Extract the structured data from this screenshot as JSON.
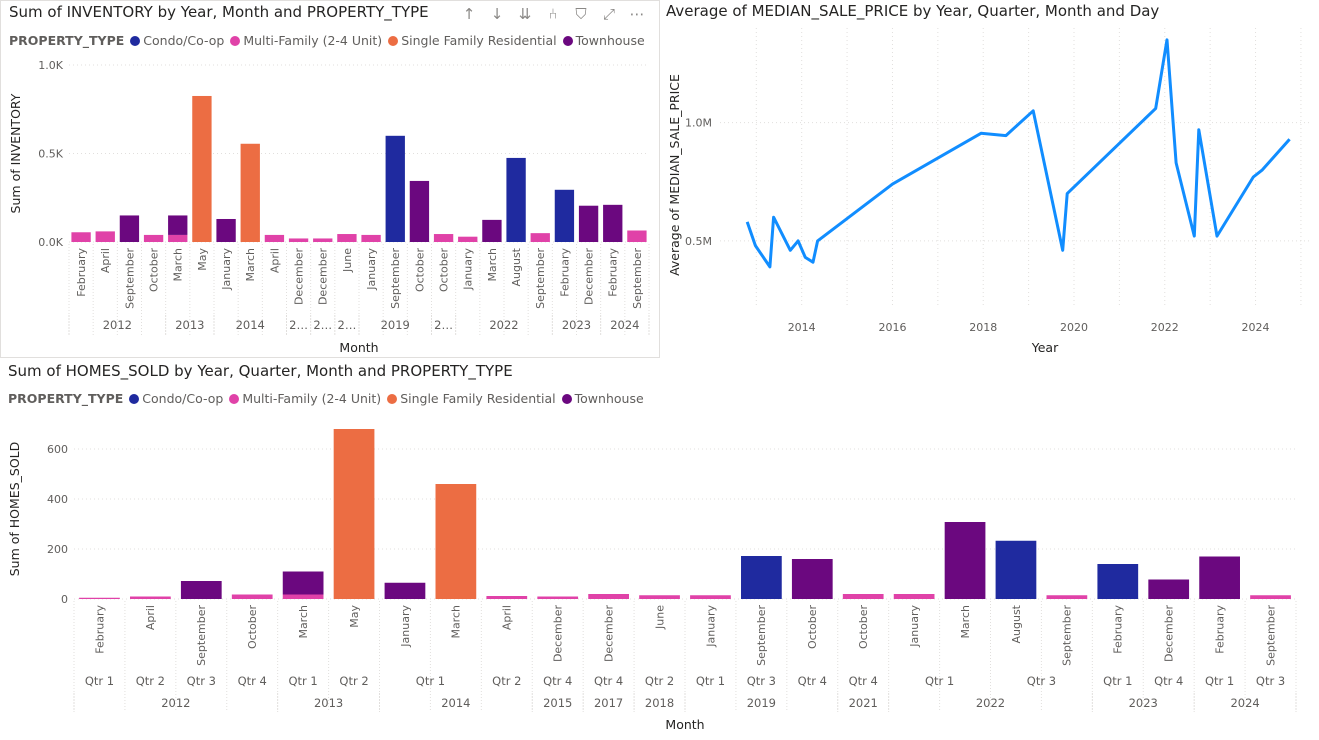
{
  "colors": {
    "condo": "#1f2a9f",
    "multi": "#e042a8",
    "sfr": "#ec6d43",
    "townhouse": "#6b087f",
    "line": "#118dff",
    "grid": "#e1dfdd",
    "axis_text": "#605e5c"
  },
  "header_icons": [
    "arrow-up-icon",
    "arrow-down-icon",
    "double-arrow-down-icon",
    "expand-hierarchy-icon",
    "filter-icon",
    "focus-mode-icon",
    "more-options-icon"
  ],
  "header_glyphs": [
    "↑",
    "↓",
    "⇊",
    "⑃",
    "⛉",
    "⤢",
    "⋯"
  ],
  "legend": {
    "title": "PROPERTY_TYPE",
    "items": [
      "Condo/Co-op",
      "Multi-Family (2-4 Unit)",
      "Single Family Residential",
      "Townhouse"
    ]
  },
  "chart_data": [
    {
      "type": "bar",
      "title": "Sum of INVENTORY by Year, Month and PROPERTY_TYPE",
      "xlabel": "Month",
      "ylabel": "Sum of INVENTORY",
      "ylim": [
        0,
        1000
      ],
      "yticks": [
        0,
        500,
        1000
      ],
      "ytick_labels": [
        "0.0K",
        "0.5K",
        "1.0K"
      ],
      "grid": true,
      "legend_position": "top-left",
      "categories": [
        "February",
        "April",
        "September",
        "October",
        "March",
        "May",
        "January",
        "March",
        "April",
        "December",
        "December",
        "June",
        "January",
        "September",
        "October",
        "October",
        "January",
        "March",
        "August",
        "September",
        "February",
        "December",
        "February",
        "September"
      ],
      "years": [
        {
          "label": "2012",
          "span": 4
        },
        {
          "label": "2013",
          "span": 2
        },
        {
          "label": "2014",
          "span": 3
        },
        {
          "label": "2…",
          "span": 1
        },
        {
          "label": "2…",
          "span": 1
        },
        {
          "label": "2…",
          "span": 1
        },
        {
          "label": "2019",
          "span": 3
        },
        {
          "label": "2…",
          "span": 1
        },
        {
          "label": "2022",
          "span": 4
        },
        {
          "label": "2023",
          "span": 2
        },
        {
          "label": "2024",
          "span": 2
        }
      ],
      "series": [
        {
          "name": "Condo/Co-op",
          "values": [
            0,
            0,
            0,
            0,
            0,
            0,
            0,
            0,
            0,
            0,
            0,
            0,
            0,
            600,
            0,
            0,
            0,
            0,
            475,
            0,
            295,
            0,
            0,
            0
          ]
        },
        {
          "name": "Multi-Family (2-4 Unit)",
          "values": [
            55,
            60,
            0,
            40,
            40,
            0,
            0,
            0,
            40,
            20,
            20,
            45,
            40,
            0,
            0,
            45,
            30,
            0,
            0,
            50,
            0,
            0,
            0,
            65
          ]
        },
        {
          "name": "Single Family Residential",
          "values": [
            0,
            0,
            0,
            0,
            0,
            825,
            0,
            555,
            0,
            0,
            0,
            0,
            0,
            0,
            0,
            0,
            0,
            0,
            0,
            0,
            0,
            0,
            0,
            0
          ]
        },
        {
          "name": "Townhouse",
          "values": [
            0,
            0,
            150,
            0,
            110,
            0,
            130,
            0,
            0,
            0,
            0,
            0,
            0,
            0,
            345,
            0,
            0,
            125,
            0,
            0,
            0,
            205,
            210,
            0
          ]
        }
      ]
    },
    {
      "type": "line",
      "title": "Average of MEDIAN_SALE_PRICE by Year, Quarter, Month and Day",
      "xlabel": "Year",
      "ylabel": "Average of MEDIAN_SALE_PRICE",
      "xlim": [
        2012.2,
        2025.2
      ],
      "ylim": [
        250000,
        1400000
      ],
      "xticks": [
        2014,
        2016,
        2018,
        2020,
        2022,
        2024
      ],
      "xtick_labels": [
        "2014",
        "2016",
        "2018",
        "2020",
        "2022",
        "2024"
      ],
      "yticks": [
        500000,
        1000000
      ],
      "ytick_labels": [
        "0.5M",
        "1.0M"
      ],
      "grid": true,
      "x": [
        2012.8,
        2012.98,
        2013.3,
        2013.38,
        2013.75,
        2013.92,
        2014.08,
        2014.25,
        2014.35,
        2016.0,
        2017.95,
        2018.5,
        2019.1,
        2019.75,
        2019.85,
        2021.8,
        2022.05,
        2022.25,
        2022.65,
        2022.75,
        2023.15,
        2023.95,
        2024.15,
        2024.75
      ],
      "y": [
        580000,
        480000,
        390000,
        600000,
        460000,
        500000,
        430000,
        410000,
        500000,
        740000,
        955000,
        945000,
        1050000,
        460000,
        700000,
        1060000,
        1350000,
        830000,
        520000,
        970000,
        520000,
        770000,
        800000,
        930000
      ]
    },
    {
      "type": "bar",
      "title": "Sum of HOMES_SOLD by Year, Quarter, Month and PROPERTY_TYPE",
      "xlabel": "Month",
      "ylabel": "Sum of HOMES_SOLD",
      "ylim": [
        0,
        720
      ],
      "yticks": [
        0,
        200,
        400,
        600
      ],
      "ytick_labels": [
        "0",
        "200",
        "400",
        "600"
      ],
      "grid": true,
      "legend_position": "top-left",
      "categories": [
        "February",
        "April",
        "September",
        "October",
        "March",
        "May",
        "January",
        "March",
        "April",
        "December",
        "December",
        "June",
        "January",
        "September",
        "October",
        "October",
        "January",
        "March",
        "August",
        "September",
        "February",
        "December",
        "February",
        "September"
      ],
      "quarters": [
        {
          "label": "Qtr 1",
          "span": 1
        },
        {
          "label": "Qtr 2",
          "span": 1
        },
        {
          "label": "Qtr 3",
          "span": 1
        },
        {
          "label": "Qtr 4",
          "span": 1
        },
        {
          "label": "Qtr 1",
          "span": 1
        },
        {
          "label": "Qtr 2",
          "span": 1
        },
        {
          "label": "Qtr 1",
          "span": 2
        },
        {
          "label": "Qtr 2",
          "span": 1
        },
        {
          "label": "Qtr 4",
          "span": 1
        },
        {
          "label": "Qtr 4",
          "span": 1
        },
        {
          "label": "Qtr 2",
          "span": 1
        },
        {
          "label": "Qtr 1",
          "span": 1
        },
        {
          "label": "Qtr 3",
          "span": 1
        },
        {
          "label": "Qtr 4",
          "span": 1
        },
        {
          "label": "Qtr 4",
          "span": 1
        },
        {
          "label": "Qtr 1",
          "span": 2
        },
        {
          "label": "Qtr 3",
          "span": 2
        },
        {
          "label": "Qtr 1",
          "span": 1
        },
        {
          "label": "Qtr 4",
          "span": 1
        },
        {
          "label": "Qtr 1",
          "span": 1
        },
        {
          "label": "Qtr 3",
          "span": 1
        }
      ],
      "years": [
        {
          "label": "2012",
          "span": 4
        },
        {
          "label": "2013",
          "span": 2
        },
        {
          "label": "2014",
          "span": 3
        },
        {
          "label": "2015",
          "span": 1
        },
        {
          "label": "2017",
          "span": 1
        },
        {
          "label": "2018",
          "span": 1
        },
        {
          "label": "2019",
          "span": 3
        },
        {
          "label": "2021",
          "span": 1
        },
        {
          "label": "2022",
          "span": 4
        },
        {
          "label": "2023",
          "span": 2
        },
        {
          "label": "2024",
          "span": 2
        }
      ],
      "series": [
        {
          "name": "Condo/Co-op",
          "values": [
            0,
            0,
            0,
            0,
            0,
            0,
            0,
            0,
            0,
            0,
            0,
            0,
            0,
            172,
            0,
            0,
            0,
            0,
            233,
            0,
            140,
            0,
            0,
            0
          ]
        },
        {
          "name": "Multi-Family (2-4 Unit)",
          "values": [
            5,
            10,
            0,
            18,
            18,
            0,
            0,
            0,
            12,
            10,
            20,
            15,
            15,
            0,
            0,
            20,
            20,
            0,
            0,
            15,
            0,
            0,
            0,
            15
          ]
        },
        {
          "name": "Single Family Residential",
          "values": [
            0,
            0,
            0,
            0,
            0,
            680,
            0,
            460,
            0,
            0,
            0,
            0,
            0,
            0,
            0,
            0,
            0,
            0,
            0,
            0,
            0,
            0,
            0,
            0
          ]
        },
        {
          "name": "Townhouse",
          "values": [
            0,
            0,
            72,
            0,
            92,
            0,
            65,
            0,
            0,
            0,
            0,
            0,
            0,
            0,
            160,
            0,
            0,
            308,
            0,
            0,
            0,
            78,
            170,
            0
          ]
        }
      ]
    }
  ]
}
